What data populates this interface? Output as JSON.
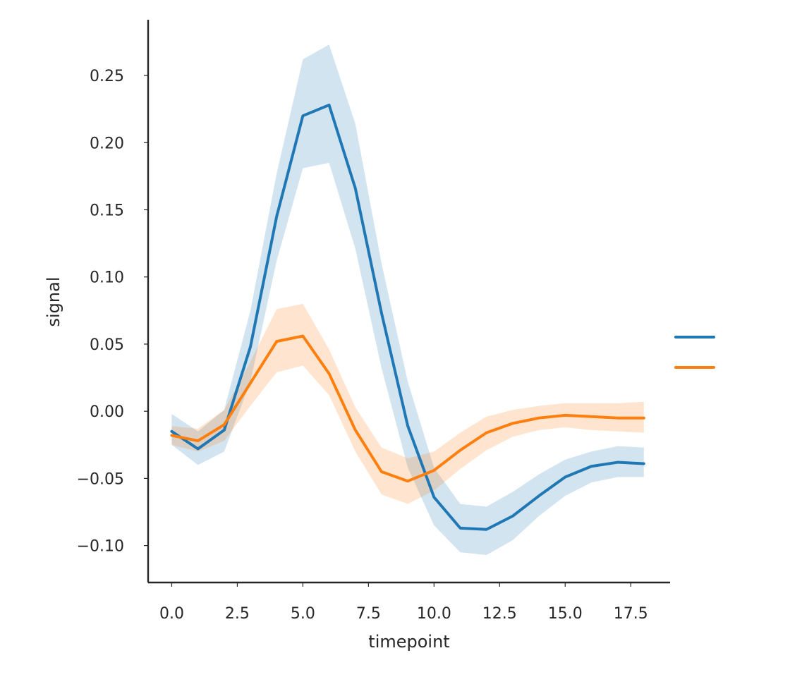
{
  "chart_data": {
    "type": "line",
    "title": "",
    "xlabel": "timepoint",
    "ylabel": "signal",
    "xlim": [
      -0.9,
      19.0
    ],
    "ylim": [
      -0.1275,
      0.2915
    ],
    "xticks": [
      0.0,
      2.5,
      5.0,
      7.5,
      10.0,
      12.5,
      15.0,
      17.5
    ],
    "xtick_labels": [
      "0.0",
      "2.5",
      "5.0",
      "7.5",
      "10.0",
      "12.5",
      "15.0",
      "17.5"
    ],
    "yticks": [
      -0.1,
      -0.05,
      0.0,
      0.05,
      0.1,
      0.15,
      0.2,
      0.25
    ],
    "ytick_labels": [
      "−0.10",
      "−0.05",
      "0.00",
      "0.05",
      "0.10",
      "0.15",
      "0.20",
      "0.25"
    ],
    "grid": false,
    "legend": {
      "placement": "center-right",
      "entries": [
        {
          "label": "",
          "color": "#1f77b4"
        },
        {
          "label": "",
          "color": "#ff7f0e"
        }
      ]
    },
    "x": [
      0,
      1,
      2,
      3,
      4,
      5,
      6,
      7,
      8,
      9,
      10,
      11,
      12,
      13,
      14,
      15,
      16,
      17,
      18
    ],
    "series": [
      {
        "color": "#1f77b4",
        "band_color": "#1f77b4",
        "values": [
          -0.015,
          -0.028,
          -0.014,
          0.048,
          0.145,
          0.22,
          0.228,
          0.166,
          0.073,
          -0.011,
          -0.064,
          -0.087,
          -0.088,
          -0.078,
          -0.063,
          -0.049,
          -0.041,
          -0.038,
          -0.039
        ],
        "ci_lower": [
          -0.025,
          -0.04,
          -0.03,
          0.022,
          0.112,
          0.181,
          0.185,
          0.121,
          0.032,
          -0.042,
          -0.085,
          -0.105,
          -0.107,
          -0.096,
          -0.078,
          -0.063,
          -0.053,
          -0.049,
          -0.049
        ],
        "ci_upper": [
          -0.002,
          -0.015,
          0.001,
          0.075,
          0.177,
          0.262,
          0.273,
          0.214,
          0.11,
          0.022,
          -0.042,
          -0.069,
          -0.071,
          -0.06,
          -0.047,
          -0.036,
          -0.03,
          -0.026,
          -0.027
        ]
      },
      {
        "color": "#ff7f0e",
        "band_color": "#ff7f0e",
        "values": [
          -0.018,
          -0.022,
          -0.01,
          0.021,
          0.052,
          0.056,
          0.028,
          -0.014,
          -0.045,
          -0.052,
          -0.044,
          -0.029,
          -0.016,
          -0.009,
          -0.005,
          -0.003,
          -0.004,
          -0.005,
          -0.005
        ],
        "ci_lower": [
          -0.025,
          -0.03,
          -0.022,
          0.004,
          0.029,
          0.034,
          0.012,
          -0.03,
          -0.062,
          -0.069,
          -0.059,
          -0.043,
          -0.029,
          -0.019,
          -0.014,
          -0.012,
          -0.014,
          -0.015,
          -0.016
        ],
        "ci_upper": [
          -0.011,
          -0.013,
          0.001,
          0.037,
          0.076,
          0.08,
          0.046,
          0.003,
          -0.027,
          -0.035,
          -0.03,
          -0.016,
          -0.004,
          0.001,
          0.004,
          0.006,
          0.006,
          0.006,
          0.007
        ]
      }
    ]
  }
}
